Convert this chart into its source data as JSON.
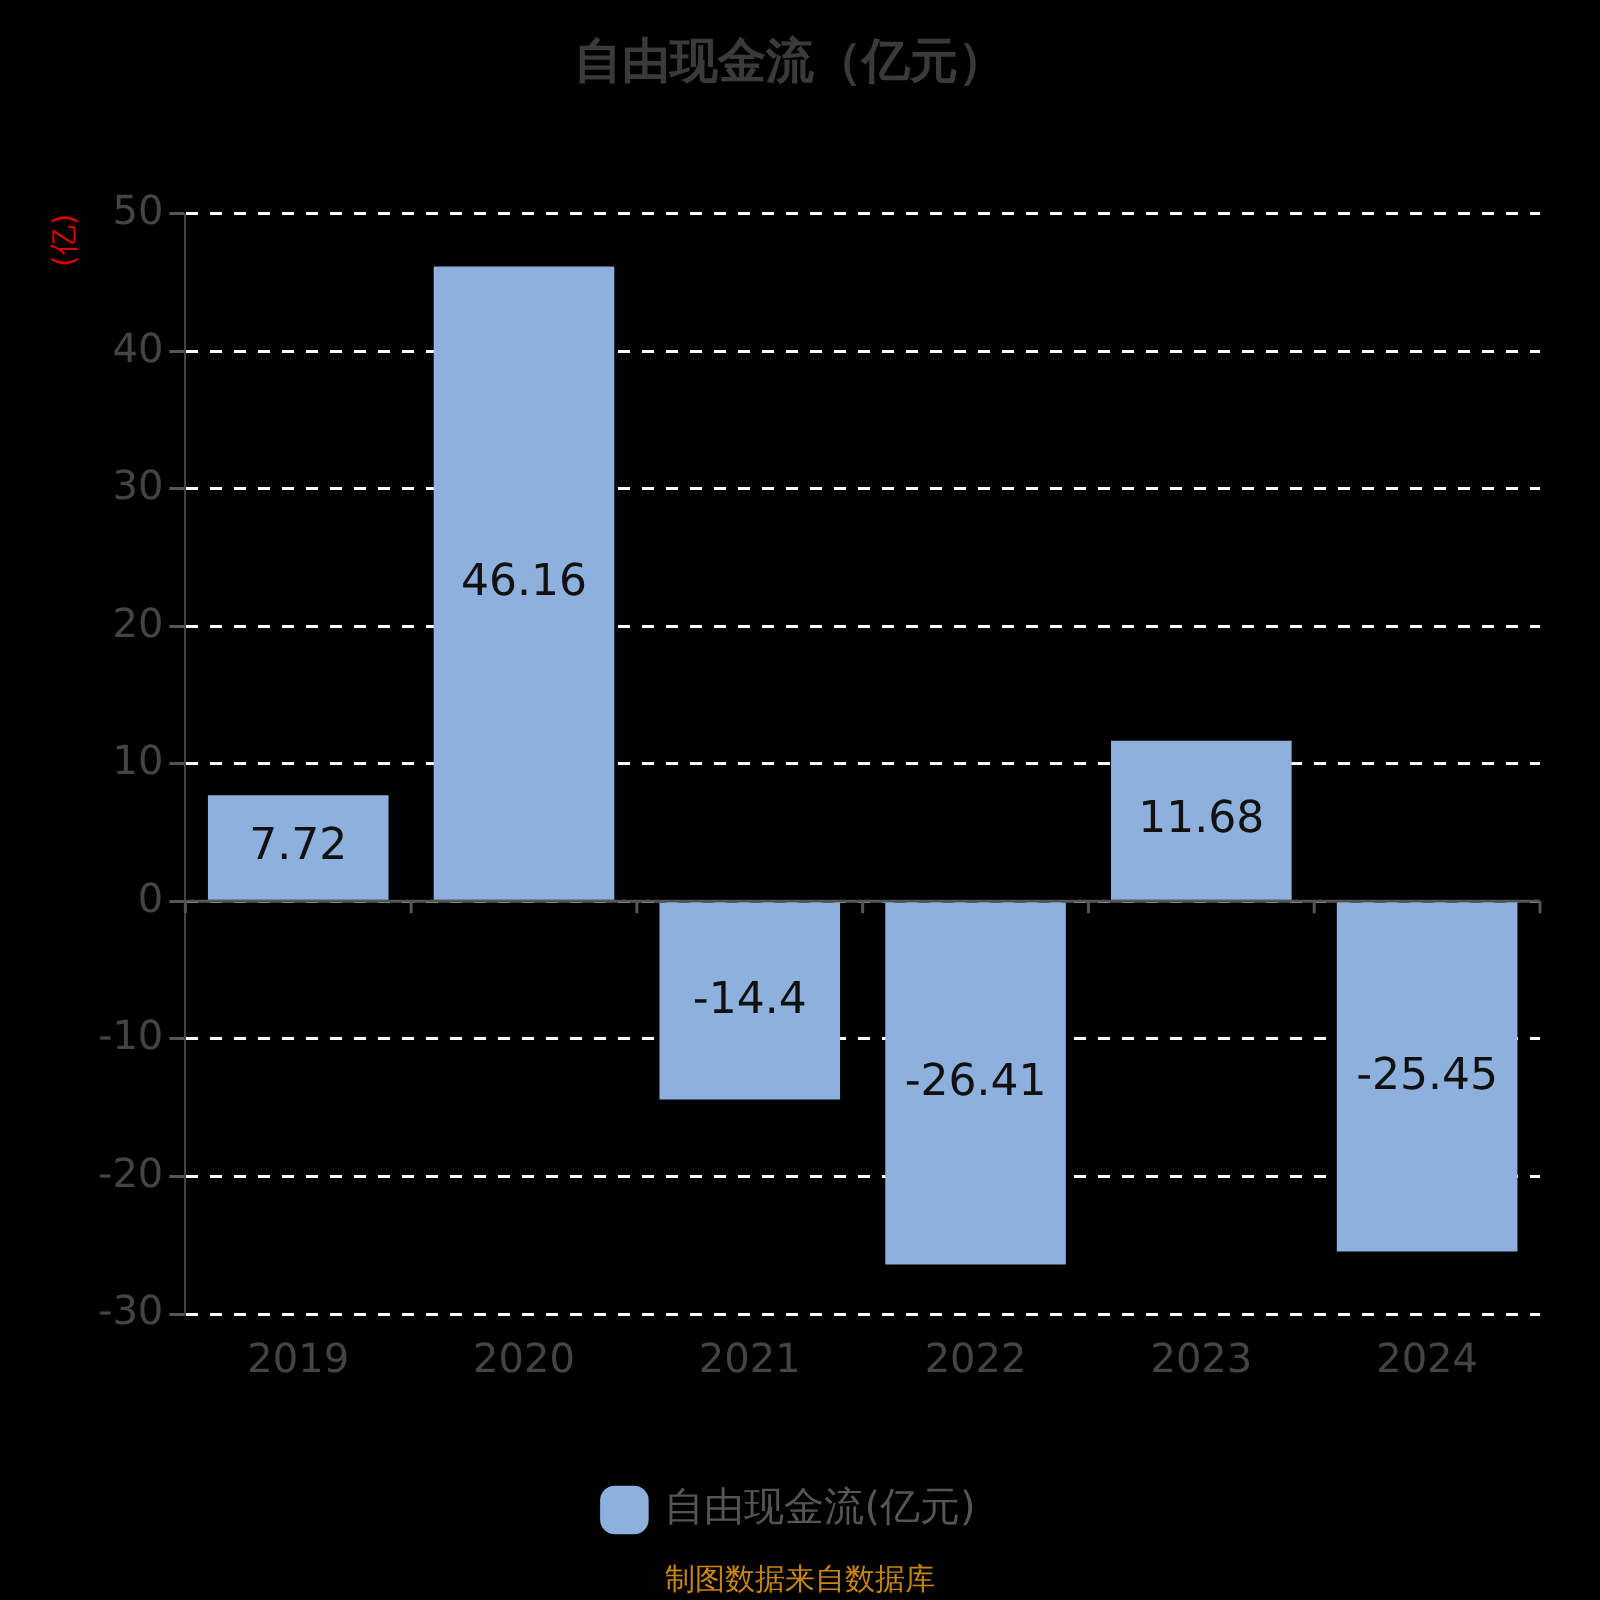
{
  "chart_data": {
    "type": "bar",
    "title": "自由现金流（亿元）",
    "ylabel": "(亿)",
    "categories": [
      "2019",
      "2020",
      "2021",
      "2022",
      "2023",
      "2024"
    ],
    "series": [
      {
        "name": "自由现金流(亿元)",
        "color": "#8eb0dc",
        "values": [
          7.72,
          46.16,
          -14.4,
          -26.41,
          11.68,
          -25.45
        ]
      }
    ],
    "ylim": [
      -30,
      50
    ],
    "yticks": [
      -30,
      -20,
      -10,
      0,
      10,
      20,
      30,
      40,
      50
    ],
    "grid": "y",
    "legend": "bottom",
    "data_labels": true,
    "annotations": [
      "制图数据来自数据库"
    ]
  }
}
